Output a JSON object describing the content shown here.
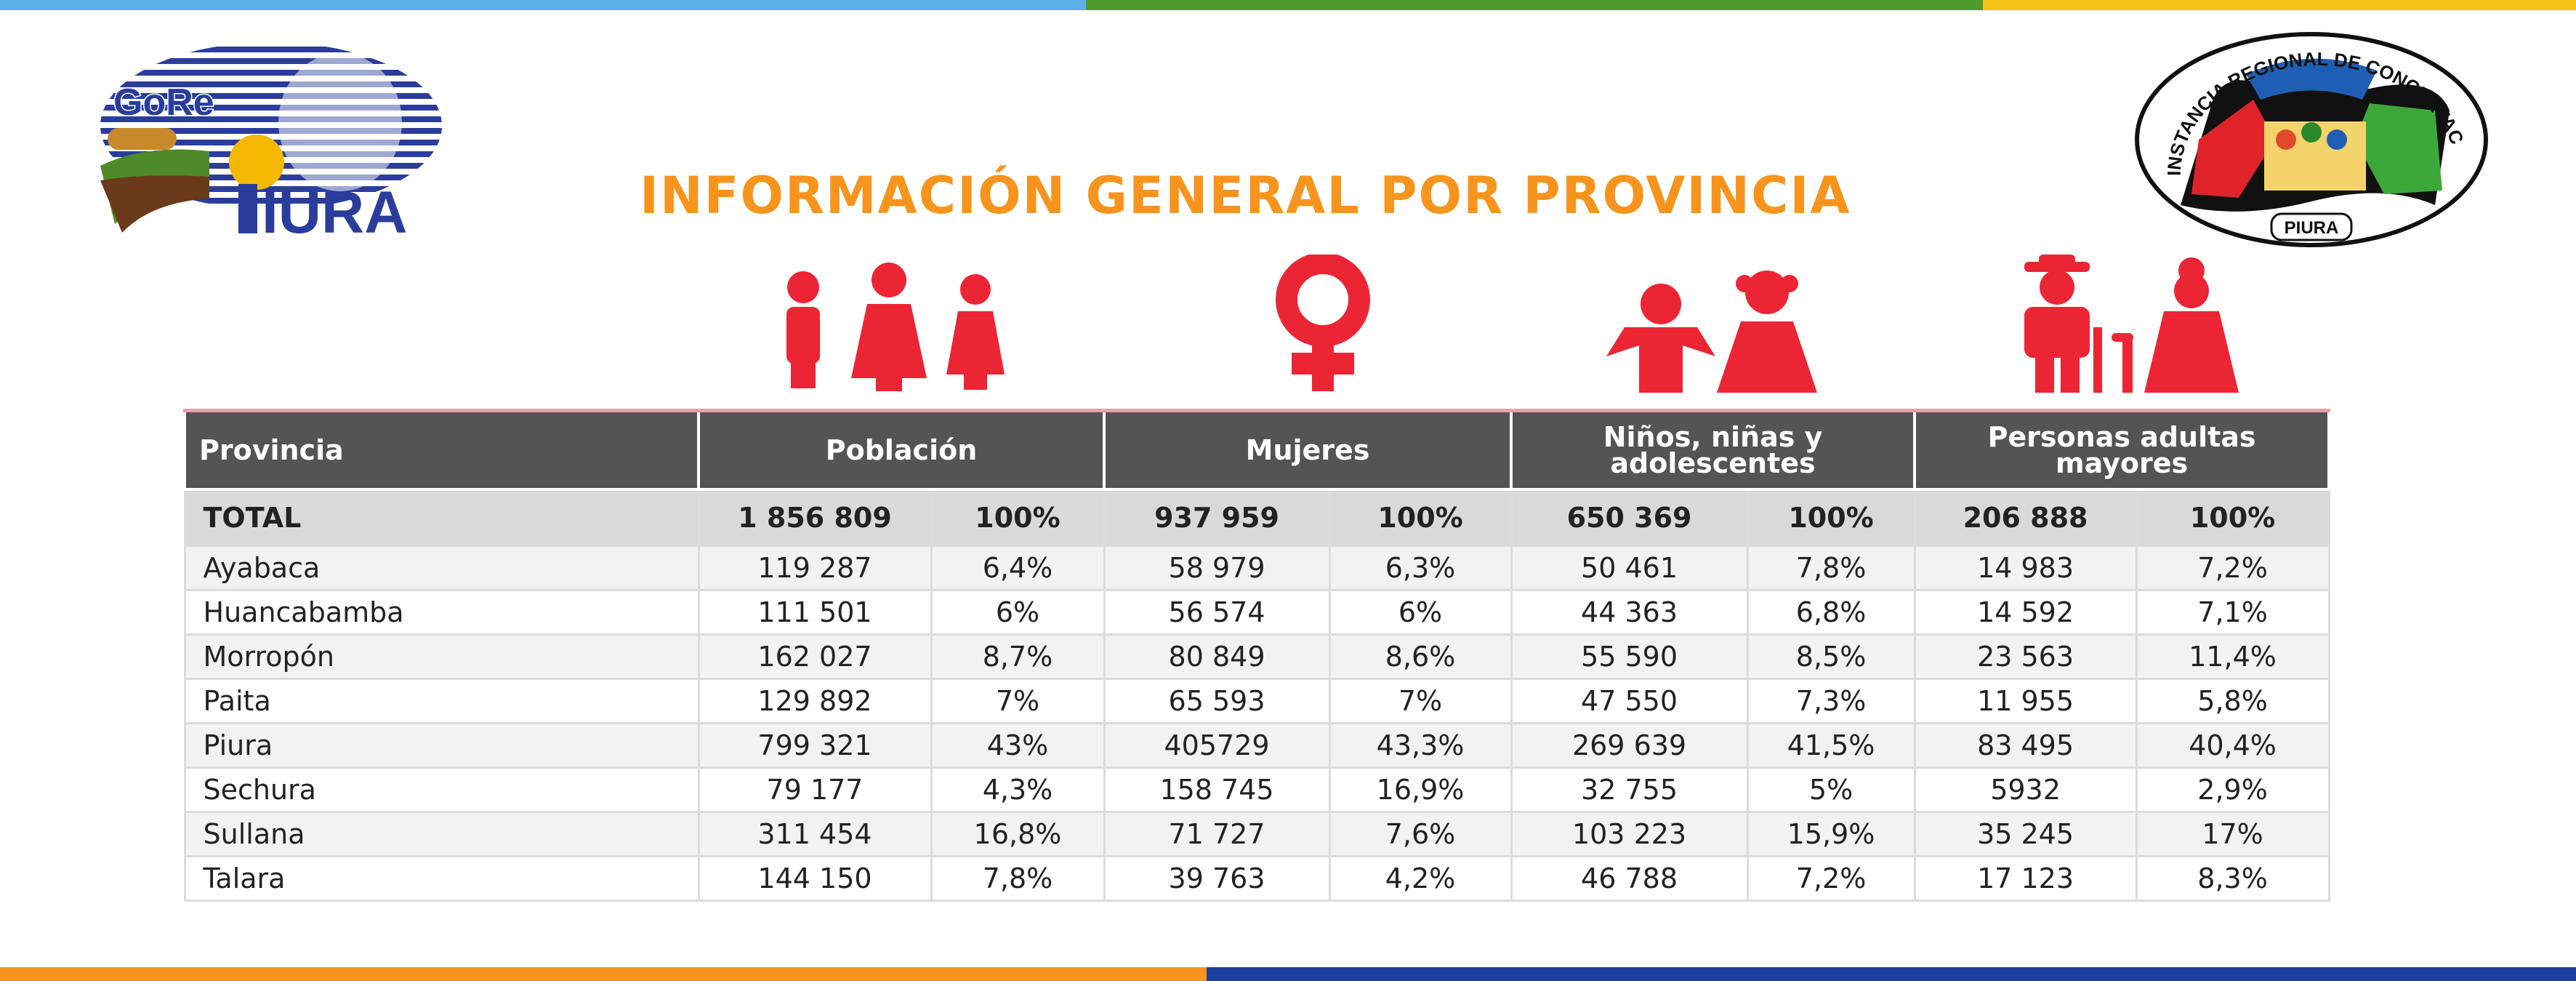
{
  "colors": {
    "top_bar": [
      "#5BB0E8",
      "#4E9A2A",
      "#F5C316"
    ],
    "bottom_bar": [
      "#F7941D",
      "#1F3FA0"
    ],
    "title": "#F7941D",
    "icon_red": "#EC2535",
    "header_bg": "#545454"
  },
  "logos": {
    "gore": {
      "line1": "GoRe",
      "line2": "IURA",
      "icon": "gore-piura-logo"
    },
    "instancia": {
      "arc_text": "INSTANCIA REGIONAL DE CONCERTACIÓN - IRC",
      "bottom_text": "PIURA",
      "icon": "instancia-regional-logo"
    }
  },
  "title": "INFORMACIÓN GENERAL POR PROVINCIA",
  "icons": [
    "population-icon",
    "female-symbol-icon",
    "children-icon",
    "elderly-icon"
  ],
  "table": {
    "headers": [
      "Provincia",
      "Población",
      "Mujeres",
      "Niños, niñas y adolescentes",
      "Personas adultas mayores"
    ],
    "total": {
      "label": "TOTAL",
      "values": [
        "1 856 809",
        "100%",
        "937 959",
        "100%",
        "650 369",
        "100%",
        "206 888",
        "100%"
      ]
    },
    "rows": [
      {
        "provincia": "Ayabaca",
        "values": [
          "119 287",
          "6,4%",
          "58 979",
          "6,3%",
          "50 461",
          "7,8%",
          "14 983",
          "7,2%"
        ]
      },
      {
        "provincia": "Huancabamba",
        "values": [
          "111 501",
          "6%",
          "56 574",
          "6%",
          "44 363",
          "6,8%",
          "14 592",
          "7,1%"
        ]
      },
      {
        "provincia": "Morropón",
        "values": [
          "162 027",
          "8,7%",
          "80 849",
          "8,6%",
          "55 590",
          "8,5%",
          "23 563",
          "11,4%"
        ]
      },
      {
        "provincia": "Paita",
        "values": [
          "129 892",
          "7%",
          "65 593",
          "7%",
          "47 550",
          "7,3%",
          "11 955",
          "5,8%"
        ]
      },
      {
        "provincia": "Piura",
        "values": [
          "799 321",
          "43%",
          "405729",
          "43,3%",
          "269 639",
          "41,5%",
          "83 495",
          "40,4%"
        ]
      },
      {
        "provincia": "Sechura",
        "values": [
          "79 177",
          "4,3%",
          "158 745",
          "16,9%",
          "32 755",
          "5%",
          "5932",
          "2,9%"
        ]
      },
      {
        "provincia": "Sullana",
        "values": [
          "311 454",
          "16,8%",
          "71 727",
          "7,6%",
          "103 223",
          "15,9%",
          "35 245",
          "17%"
        ]
      },
      {
        "provincia": "Talara",
        "values": [
          "144 150",
          "7,8%",
          "39 763",
          "4,2%",
          "46 788",
          "7,2%",
          "17 123",
          "8,3%"
        ]
      }
    ]
  }
}
